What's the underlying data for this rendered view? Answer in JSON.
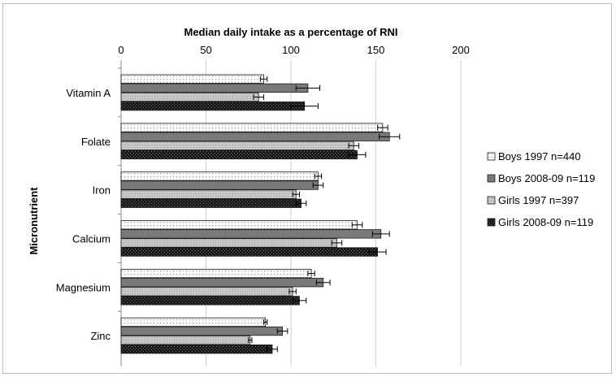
{
  "chart_data": {
    "type": "bar",
    "orientation": "horizontal",
    "title": "Median daily intake as a percentage of RNI",
    "ylabel": "Micronutrient",
    "xlim": [
      0,
      200
    ],
    "xticks": [
      "0",
      "50",
      "100",
      "150",
      "200"
    ],
    "grid": true,
    "legend_position": "right",
    "categories": [
      "Vitamin A",
      "Folate",
      "Iron",
      "Calcium",
      "Magnesium",
      "Zinc"
    ],
    "series": [
      {
        "name": "Boys 1997 n=440",
        "pattern": "dots-light",
        "color": "#f2f2f2",
        "values": [
          84,
          154,
          116,
          139,
          112,
          85
        ],
        "errors": [
          2,
          3,
          2,
          3,
          2,
          1
        ]
      },
      {
        "name": "Boys 2008-09 n=119",
        "pattern": "solid-mid",
        "color": "#7a7a7a",
        "values": [
          110,
          158,
          116,
          153,
          119,
          95
        ],
        "errors": [
          7,
          6,
          3,
          5,
          4,
          3
        ]
      },
      {
        "name": "Girls 1997 n=397",
        "pattern": "dots-mid",
        "color": "#bdbdbd",
        "values": [
          81,
          137,
          103,
          127,
          101,
          76
        ],
        "errors": [
          3,
          3,
          2,
          3,
          2,
          1
        ]
      },
      {
        "name": "Girls 2008-09 n=119",
        "pattern": "checker-dark",
        "color": "#1a1a1a",
        "values": [
          108,
          139,
          106,
          151,
          105,
          89
        ],
        "errors": [
          8,
          5,
          3,
          5,
          4,
          3
        ]
      }
    ]
  }
}
